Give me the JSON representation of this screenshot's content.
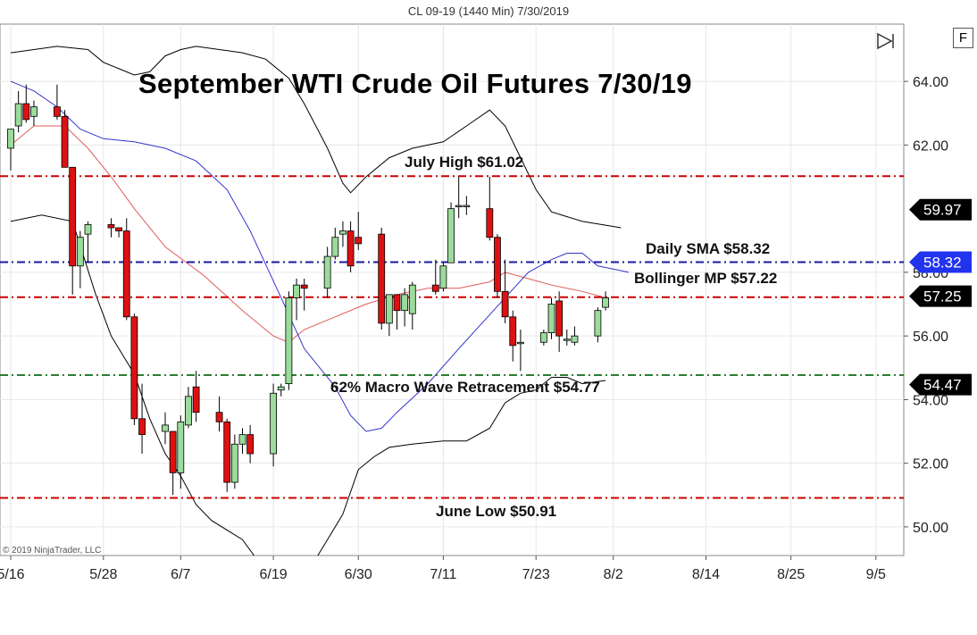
{
  "header": "CL 09-19 (1440 Min)  7/30/2019",
  "corner_button": "F",
  "copyright": "© 2019 NinjaTrader, LLC",
  "chart_data": {
    "type": "candlestick",
    "title": "September WTI Crude Oil Futures 7/30/19",
    "y_ticks": [
      64,
      62,
      58,
      56,
      54,
      52,
      50
    ],
    "y_tick_labels": [
      "64.00",
      "62.00",
      "58.00",
      "56.00",
      "54.00",
      "52.00",
      "50.00"
    ],
    "x_ticks": [
      {
        "label": "5/16",
        "day": 0
      },
      {
        "label": "5/28",
        "day": 12
      },
      {
        "label": "6/7",
        "day": 22
      },
      {
        "label": "6/19",
        "day": 34
      },
      {
        "label": "6/30",
        "day": 45
      },
      {
        "label": "7/11",
        "day": 56
      },
      {
        "label": "7/23",
        "day": 68
      },
      {
        "label": "8/2",
        "day": 78
      },
      {
        "label": "8/14",
        "day": 90
      },
      {
        "label": "8/25",
        "day": 101
      },
      {
        "label": "9/5",
        "day": 112
      }
    ],
    "ylim": [
      49.1,
      65.8
    ],
    "xlim": [
      0,
      112
    ],
    "candles": [
      {
        "day": 0,
        "o": 61.9,
        "h": 62.5,
        "l": 61.2,
        "c": 62.5
      },
      {
        "day": 1,
        "o": 62.6,
        "h": 63.7,
        "l": 62.4,
        "c": 63.3
      },
      {
        "day": 2,
        "o": 63.3,
        "h": 63.9,
        "l": 62.7,
        "c": 62.8
      },
      {
        "day": 3,
        "o": 62.9,
        "h": 63.4,
        "l": 62.6,
        "c": 63.2
      },
      {
        "day": 6,
        "o": 63.2,
        "h": 63.9,
        "l": 62.8,
        "c": 62.9
      },
      {
        "day": 7,
        "o": 62.9,
        "h": 63.1,
        "l": 61.3,
        "c": 61.3
      },
      {
        "day": 8,
        "o": 61.3,
        "h": 61.3,
        "l": 57.3,
        "c": 58.2
      },
      {
        "day": 9,
        "o": 58.2,
        "h": 59.3,
        "l": 57.5,
        "c": 59.1
      },
      {
        "day": 10,
        "o": 59.2,
        "h": 59.6,
        "l": 58.3,
        "c": 59.5
      },
      {
        "day": 13,
        "o": 59.5,
        "h": 59.7,
        "l": 59.1,
        "c": 59.4
      },
      {
        "day": 14,
        "o": 59.4,
        "h": 59.4,
        "l": 59.1,
        "c": 59.3
      },
      {
        "day": 15,
        "o": 59.3,
        "h": 59.7,
        "l": 56.5,
        "c": 56.6
      },
      {
        "day": 16,
        "o": 56.6,
        "h": 56.7,
        "l": 53.2,
        "c": 53.4
      },
      {
        "day": 17,
        "o": 53.4,
        "h": 54.5,
        "l": 52.3,
        "c": 52.9
      },
      {
        "day": 20,
        "o": 53.0,
        "h": 53.6,
        "l": 52.6,
        "c": 53.2
      },
      {
        "day": 21,
        "o": 53.0,
        "h": 53.0,
        "l": 51.0,
        "c": 51.7
      },
      {
        "day": 22,
        "o": 51.7,
        "h": 53.5,
        "l": 51.2,
        "c": 53.3
      },
      {
        "day": 23,
        "o": 53.2,
        "h": 54.4,
        "l": 53.1,
        "c": 54.1
      },
      {
        "day": 24,
        "o": 54.4,
        "h": 54.9,
        "l": 53.3,
        "c": 53.6
      },
      {
        "day": 27,
        "o": 53.6,
        "h": 54.1,
        "l": 53.0,
        "c": 53.3
      },
      {
        "day": 28,
        "o": 53.3,
        "h": 53.4,
        "l": 51.1,
        "c": 51.4
      },
      {
        "day": 29,
        "o": 51.4,
        "h": 52.9,
        "l": 51.2,
        "c": 52.6
      },
      {
        "day": 30,
        "o": 52.6,
        "h": 53.1,
        "l": 52.3,
        "c": 52.9
      },
      {
        "day": 31,
        "o": 52.9,
        "h": 53.2,
        "l": 52.0,
        "c": 52.3
      },
      {
        "day": 34,
        "o": 52.3,
        "h": 54.5,
        "l": 51.9,
        "c": 54.2
      },
      {
        "day": 35,
        "o": 54.3,
        "h": 54.5,
        "l": 54.1,
        "c": 54.4
      },
      {
        "day": 36,
        "o": 54.5,
        "h": 57.4,
        "l": 54.3,
        "c": 57.2
      },
      {
        "day": 37,
        "o": 57.2,
        "h": 57.8,
        "l": 56.5,
        "c": 57.6
      },
      {
        "day": 38,
        "o": 57.6,
        "h": 57.8,
        "l": 56.8,
        "c": 57.5
      },
      {
        "day": 41,
        "o": 57.5,
        "h": 58.8,
        "l": 57.2,
        "c": 58.5
      },
      {
        "day": 42,
        "o": 58.5,
        "h": 59.4,
        "l": 58.4,
        "c": 59.1
      },
      {
        "day": 43,
        "o": 59.2,
        "h": 59.6,
        "l": 58.8,
        "c": 59.3
      },
      {
        "day": 44,
        "o": 59.3,
        "h": 59.6,
        "l": 58.0,
        "c": 58.2
      },
      {
        "day": 45,
        "o": 59.1,
        "h": 59.9,
        "l": 58.7,
        "c": 58.9
      },
      {
        "day": 48,
        "o": 59.2,
        "h": 59.4,
        "l": 56.2,
        "c": 56.4
      },
      {
        "day": 49,
        "o": 56.4,
        "h": 57.3,
        "l": 56.0,
        "c": 57.3
      },
      {
        "day": 50,
        "o": 57.3,
        "h": 57.3,
        "l": 56.2,
        "c": 56.8
      },
      {
        "day": 51,
        "o": 56.8,
        "h": 57.5,
        "l": 56.3,
        "c": 57.3
      },
      {
        "day": 52,
        "o": 56.7,
        "h": 57.7,
        "l": 56.2,
        "c": 57.6
      },
      {
        "day": 55,
        "o": 57.6,
        "h": 58.4,
        "l": 57.3,
        "c": 57.4
      },
      {
        "day": 56,
        "o": 57.5,
        "h": 58.3,
        "l": 57.4,
        "c": 58.2
      },
      {
        "day": 57,
        "o": 58.3,
        "h": 60.2,
        "l": 58.3,
        "c": 60.0
      },
      {
        "day": 58,
        "o": 60.1,
        "h": 61.0,
        "l": 59.7,
        "c": 60.1
      },
      {
        "day": 59,
        "o": 60.1,
        "h": 60.4,
        "l": 59.8,
        "c": 60.1
      },
      {
        "day": 62,
        "o": 60.0,
        "h": 61.0,
        "l": 59.0,
        "c": 59.1
      },
      {
        "day": 63,
        "o": 59.1,
        "h": 59.2,
        "l": 57.2,
        "c": 57.4
      },
      {
        "day": 64,
        "o": 57.4,
        "h": 58.4,
        "l": 56.4,
        "c": 56.6
      },
      {
        "day": 65,
        "o": 56.6,
        "h": 56.8,
        "l": 55.2,
        "c": 55.7
      },
      {
        "day": 66,
        "o": 55.8,
        "h": 56.2,
        "l": 54.9,
        "c": 55.8
      },
      {
        "day": 69,
        "o": 55.8,
        "h": 56.2,
        "l": 55.7,
        "c": 56.1
      },
      {
        "day": 70,
        "o": 56.1,
        "h": 57.2,
        "l": 55.9,
        "c": 57.0
      },
      {
        "day": 71,
        "o": 57.1,
        "h": 57.4,
        "l": 55.5,
        "c": 56.0
      },
      {
        "day": 72,
        "o": 55.9,
        "h": 56.2,
        "l": 55.7,
        "c": 55.9
      },
      {
        "day": 73,
        "o": 55.8,
        "h": 56.3,
        "l": 55.7,
        "c": 56.0
      },
      {
        "day": 76,
        "o": 56.0,
        "h": 56.9,
        "l": 55.8,
        "c": 56.8
      },
      {
        "day": 77,
        "o": 56.9,
        "h": 57.4,
        "l": 56.8,
        "c": 57.2
      }
    ],
    "indicators": [
      {
        "name": "upper-bollinger",
        "color": "#000000",
        "points": [
          [
            0,
            64.9
          ],
          [
            6,
            65.1
          ],
          [
            10,
            65.0
          ],
          [
            12,
            64.6
          ],
          [
            14,
            64.4
          ],
          [
            16,
            64.2
          ],
          [
            18,
            64.3
          ],
          [
            20,
            64.8
          ],
          [
            22,
            65.0
          ],
          [
            24,
            65.1
          ],
          [
            27,
            65.0
          ],
          [
            30,
            64.9
          ],
          [
            33,
            64.7
          ],
          [
            36,
            64.1
          ],
          [
            38,
            63.3
          ],
          [
            41,
            61.9
          ],
          [
            43,
            60.8
          ],
          [
            44,
            60.5
          ],
          [
            46,
            61.0
          ],
          [
            49,
            61.6
          ],
          [
            52,
            61.9
          ],
          [
            56,
            62.1
          ],
          [
            59,
            62.6
          ],
          [
            62,
            63.1
          ],
          [
            64,
            62.6
          ],
          [
            66,
            61.6
          ],
          [
            68,
            60.6
          ],
          [
            70,
            59.9
          ],
          [
            74,
            59.6
          ],
          [
            79,
            59.4
          ]
        ]
      },
      {
        "name": "lower-bollinger",
        "color": "#000000",
        "points": [
          [
            0,
            59.6
          ],
          [
            4,
            59.8
          ],
          [
            8,
            59.6
          ],
          [
            11,
            57.3
          ],
          [
            13,
            56.0
          ],
          [
            16,
            54.8
          ],
          [
            18,
            53.4
          ],
          [
            20,
            52.3
          ],
          [
            22,
            51.6
          ],
          [
            24,
            50.7
          ],
          [
            26,
            50.2
          ],
          [
            30,
            49.6
          ],
          [
            33,
            48.6
          ],
          [
            36,
            48.8
          ],
          [
            38,
            48.4
          ],
          [
            41,
            49.6
          ],
          [
            43,
            50.4
          ],
          [
            45,
            51.8
          ],
          [
            47,
            52.2
          ],
          [
            49,
            52.5
          ],
          [
            52,
            52.6
          ],
          [
            56,
            52.7
          ],
          [
            59,
            52.7
          ],
          [
            62,
            53.1
          ],
          [
            64,
            53.9
          ],
          [
            66,
            54.2
          ],
          [
            68,
            54.3
          ],
          [
            70,
            54.7
          ],
          [
            72,
            54.7
          ],
          [
            74,
            54.5
          ],
          [
            77,
            54.6
          ]
        ]
      },
      {
        "name": "bollinger-midpoint",
        "color": "#e05a5a",
        "points": [
          [
            0,
            62.0
          ],
          [
            3,
            62.6
          ],
          [
            7,
            62.6
          ],
          [
            10,
            61.9
          ],
          [
            13,
            61.0
          ],
          [
            16,
            60.0
          ],
          [
            20,
            58.8
          ],
          [
            25,
            57.9
          ],
          [
            30,
            56.8
          ],
          [
            34,
            56.0
          ],
          [
            36,
            55.8
          ],
          [
            38,
            56.2
          ],
          [
            42,
            56.6
          ],
          [
            46,
            57.0
          ],
          [
            50,
            57.3
          ],
          [
            54,
            57.5
          ],
          [
            58,
            57.5
          ],
          [
            62,
            57.7
          ],
          [
            64,
            58.0
          ],
          [
            67,
            57.8
          ],
          [
            70,
            57.6
          ],
          [
            74,
            57.4
          ],
          [
            77,
            57.2
          ]
        ]
      },
      {
        "name": "daily-sma",
        "color": "#3333cc",
        "points": [
          [
            0,
            64.0
          ],
          [
            3,
            63.7
          ],
          [
            6,
            63.2
          ],
          [
            9,
            62.5
          ],
          [
            12,
            62.2
          ],
          [
            16,
            62.1
          ],
          [
            20,
            61.9
          ],
          [
            24,
            61.5
          ],
          [
            28,
            60.6
          ],
          [
            31,
            59.3
          ],
          [
            35,
            57.2
          ],
          [
            38,
            55.6
          ],
          [
            42,
            54.4
          ],
          [
            44,
            53.5
          ],
          [
            46,
            53.0
          ],
          [
            48,
            53.1
          ],
          [
            50,
            53.6
          ],
          [
            54,
            54.5
          ],
          [
            58,
            55.6
          ],
          [
            61,
            56.4
          ],
          [
            64,
            57.2
          ],
          [
            67,
            58.0
          ],
          [
            70,
            58.4
          ],
          [
            72,
            58.6
          ],
          [
            74,
            58.6
          ],
          [
            76,
            58.2
          ],
          [
            78,
            58.1
          ],
          [
            80,
            58.0
          ]
        ]
      }
    ],
    "levels": [
      {
        "name": "july-high",
        "value": 61.02,
        "color": "#cc0000",
        "label": "July High $61.02"
      },
      {
        "name": "daily-sma",
        "value": 58.32,
        "color": "#1a1aa0",
        "label": "Daily SMA $58.32"
      },
      {
        "name": "bollinger-mp",
        "value": 57.22,
        "color": "#cc0000",
        "label": "Bollinger MP $57.22"
      },
      {
        "name": "macro-wave",
        "value": 54.77,
        "color": "#2e7d32",
        "label": "62% Macro Wave Retracement $54.77"
      },
      {
        "name": "june-low",
        "value": 50.91,
        "color": "#cc0000",
        "label": "June Low $50.91"
      }
    ],
    "price_tags": [
      {
        "name": "tag-59-97",
        "value": 59.97,
        "label": "59.97",
        "color": "#000000"
      },
      {
        "name": "tag-58-32",
        "value": 58.32,
        "label": "58.32",
        "color": "#2233ee"
      },
      {
        "name": "tag-57-25",
        "value": 57.25,
        "label": "57.25",
        "color": "#000000"
      },
      {
        "name": "tag-54-47",
        "value": 54.47,
        "label": "54.47",
        "color": "#000000"
      }
    ],
    "colors": {
      "up": "#9bdb9b",
      "down": "#dd1111",
      "grid": "#e6e6e6"
    }
  }
}
